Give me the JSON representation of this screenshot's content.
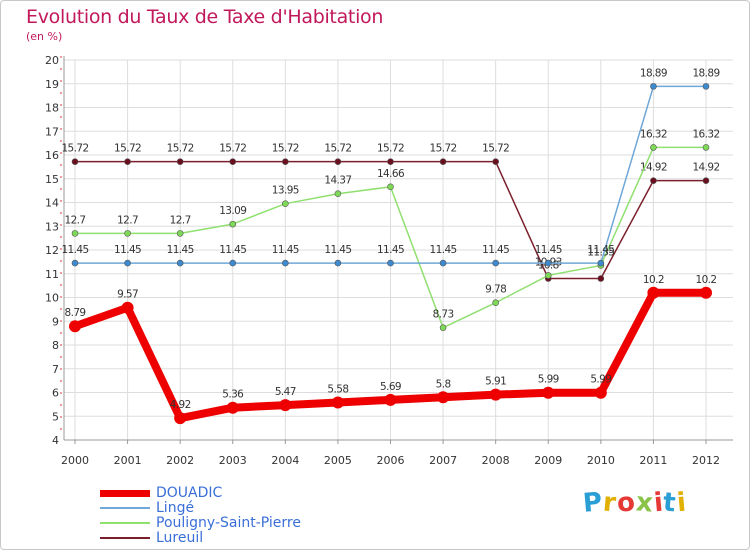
{
  "header": {
    "title": "Evolution du Taux de Taxe d'Habitation",
    "unit": "(en %)"
  },
  "brand": {
    "name": "Proxiti",
    "letter_colors": [
      "#2a9fd6",
      "#e2b000",
      "#e53935",
      "#8bc34a",
      "#e53935",
      "#2a9fd6",
      "#e2b000"
    ]
  },
  "chart_data": {
    "type": "line",
    "title": "Evolution du Taux de Taxe d'Habitation",
    "ylabel": "(en %)",
    "xlabel": "",
    "ylim": [
      4,
      20
    ],
    "yticks": [
      4,
      5,
      6,
      7,
      8,
      9,
      10,
      11,
      12,
      13,
      14,
      15,
      16,
      17,
      18,
      19,
      20
    ],
    "grid": true,
    "legend_position": "bottom-left",
    "x": [
      "2000",
      "2001",
      "2002",
      "2003",
      "2004",
      "2005",
      "2006",
      "2007",
      "2008",
      "2009",
      "2010",
      "2011",
      "2012"
    ],
    "series": [
      {
        "name": "Lureuil",
        "color": "#7a1f2b",
        "point_color": "#6b0f1f",
        "weight": "thin",
        "values": [
          15.72,
          15.72,
          15.72,
          15.72,
          15.72,
          15.72,
          15.72,
          15.72,
          15.72,
          10.8,
          10.8,
          14.92,
          14.92
        ],
        "labels": [
          "15.72",
          "15.72",
          "15.72",
          "15.72",
          "15.72",
          "15.72",
          "15.72",
          "15.72",
          "15.72",
          "10.8",
          "",
          "14.92",
          "14.92"
        ]
      },
      {
        "name": "Pouligny-Saint-Pierre",
        "color": "#90e070",
        "point_color": "#7ed957",
        "weight": "thin",
        "values": [
          12.7,
          12.7,
          12.7,
          13.09,
          13.95,
          14.37,
          14.66,
          8.73,
          9.78,
          10.93,
          11.35,
          16.32,
          16.32
        ],
        "labels": [
          "12.7",
          "12.7",
          "12.7",
          "13.09",
          "13.95",
          "14.37",
          "14.66",
          "8.73",
          "9.78",
          "10.93",
          "11.35",
          "16.32",
          "16.32"
        ]
      },
      {
        "name": "Lingé",
        "color": "#6fa7d8",
        "point_color": "#3d8ad0",
        "weight": "thin",
        "values": [
          11.45,
          11.45,
          11.45,
          11.45,
          11.45,
          11.45,
          11.45,
          11.45,
          11.45,
          11.45,
          11.45,
          18.89,
          18.89
        ],
        "labels": [
          "11.45",
          "11.45",
          "11.45",
          "11.45",
          "11.45",
          "11.45",
          "11.45",
          "11.45",
          "11.45",
          "11.45",
          "11.45",
          "18.89",
          "18.89"
        ]
      },
      {
        "name": "DOUADIC",
        "color": "#ee0000",
        "point_color": "#ee0000",
        "weight": "thick",
        "values": [
          8.79,
          9.57,
          4.92,
          5.36,
          5.47,
          5.58,
          5.69,
          5.8,
          5.91,
          5.99,
          5.99,
          10.2,
          10.2
        ],
        "labels": [
          "8.79",
          "9.57",
          "4.92",
          "5.36",
          "5.47",
          "5.58",
          "5.69",
          "5.8",
          "5.91",
          "5.99",
          "5.99",
          "10.2",
          "10.2"
        ]
      }
    ],
    "legend_order": [
      "DOUADIC",
      "Lingé",
      "Pouligny-Saint-Pierre",
      "Lureuil"
    ]
  }
}
